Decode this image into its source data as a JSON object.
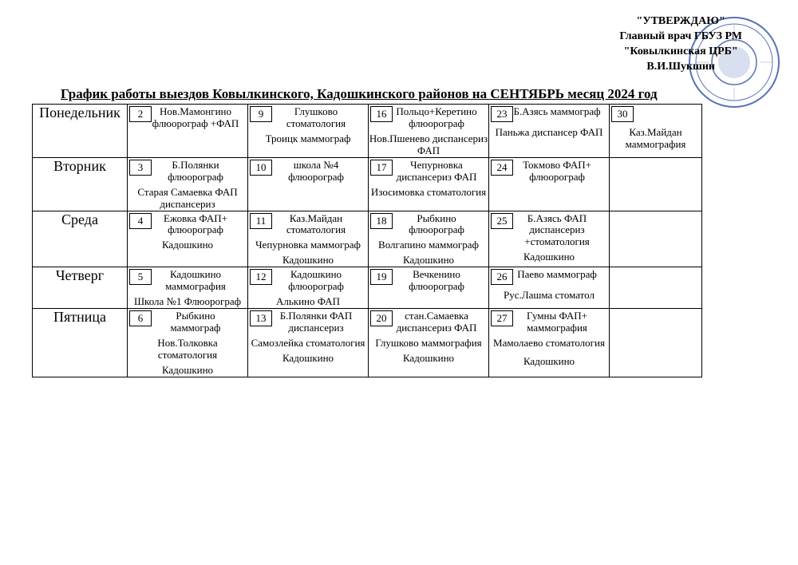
{
  "approve": {
    "l1": "\"УТВЕРЖДАЮ\"",
    "l2": "Главный врач ГБУЗ РМ",
    "l3": "\"Ковылкинская ЦРБ\"",
    "l4": "В.И.Шукшин"
  },
  "title": "График работы выездов Ковылкинского, Кадошкинского районов  на СЕНТЯБРЬ месяц  2024 год",
  "days": [
    "Понедельник",
    "Вторник",
    "Среда",
    "Четверг",
    "Пятница"
  ],
  "cells": {
    "mon": [
      {
        "n": "2",
        "top": "Нов.Мамонгино флюорограф +ФАП",
        "extra": ""
      },
      {
        "n": "9",
        "top": "Глушково стоматология",
        "extra": "Троицк маммограф"
      },
      {
        "n": "16",
        "top": "Польцо+Керетино флюорограф",
        "extra": "Нов.Пшенево диспансериз ФАП"
      },
      {
        "n": "23",
        "top": "Б.Азясь маммограф",
        "extra": "Паньжа диспансер ФАП"
      },
      {
        "n": "30",
        "top": "",
        "extra": "Каз.Майдан маммография"
      }
    ],
    "tue": [
      {
        "n": "3",
        "top": "Б.Полянки флюорограф",
        "extra": "Старая Самаевка ФАП диспансериз"
      },
      {
        "n": "10",
        "top": "школа №4 флюорограф",
        "extra": ""
      },
      {
        "n": "17",
        "top": "Чепурновка диспансериз ФАП",
        "extra": "Изосимовка стоматология"
      },
      {
        "n": "24",
        "top": "Токмово ФАП+ флюорограф",
        "extra": ""
      },
      {
        "n": "",
        "top": "",
        "extra": ""
      }
    ],
    "wed": [
      {
        "n": "4",
        "top": "Ежовка ФАП+ флюорограф",
        "extra": "Кадошкино"
      },
      {
        "n": "11",
        "top": "Каз.Майдан стоматология",
        "extra": "Чепурновка маммограф\nКадошкино"
      },
      {
        "n": "18",
        "top": "Рыбкино флюорограф",
        "extra": "Волгапино маммограф\nКадошкино"
      },
      {
        "n": "25",
        "top": "Б.Азясь ФАП диспансериз +стоматология",
        "extra": "Кадошкино"
      },
      {
        "n": "",
        "top": "",
        "extra": ""
      }
    ],
    "thu": [
      {
        "n": "5",
        "top": "Кадошкино маммография",
        "extra": "Школа №1 Флюорограф"
      },
      {
        "n": "12",
        "top": "Кадошкино флюорограф",
        "extra": "Алькино ФАП"
      },
      {
        "n": "19",
        "top": "Вечкенино флюорограф",
        "extra": ""
      },
      {
        "n": "26",
        "top": "Паево маммограф",
        "extra": "Рус.Лашма стоматол"
      },
      {
        "n": "",
        "top": "",
        "extra": ""
      }
    ],
    "fri": [
      {
        "n": "6",
        "top": "Рыбкино маммограф",
        "extra": "Нов.Толковка стоматология\nКадошкино"
      },
      {
        "n": "13",
        "top": "Б.Полянки ФАП диспансериз",
        "extra": "Самозлейка стоматология\nКадошкино"
      },
      {
        "n": "20",
        "top": "стан.Самаевка диспансериз ФАП",
        "extra": "Глушково маммография\nКадошкино"
      },
      {
        "n": "27",
        "top": "Гумны ФАП+ маммография",
        "extra": "Мамолаево стоматология\n\nКадошкино"
      },
      {
        "n": "",
        "top": "",
        "extra": ""
      }
    ]
  },
  "colors": {
    "stamp_outer": "#2a4fa5",
    "stamp_inner": "#3b5fb0"
  }
}
